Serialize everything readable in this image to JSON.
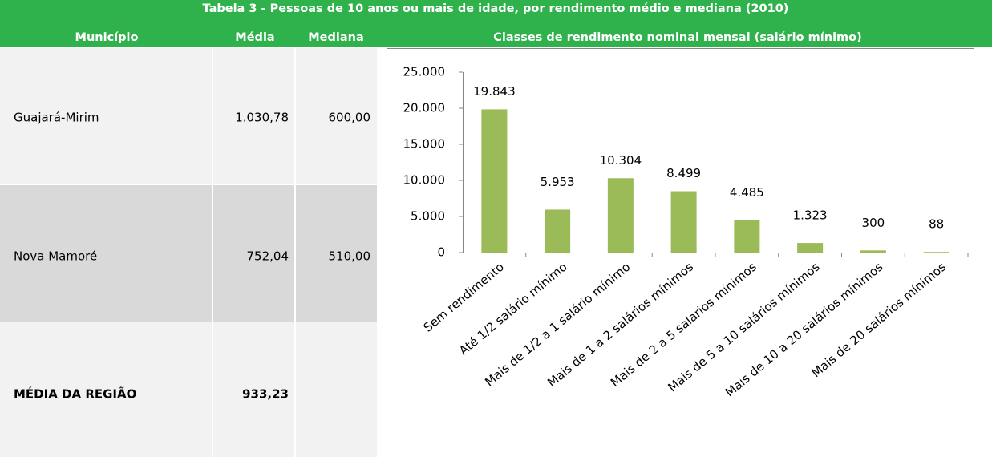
{
  "table": {
    "title": "Tabela 3 - Pessoas de 10 anos ou mais de idade, por rendimento médio e mediana (2010)",
    "columns": [
      "Município",
      "Média",
      "Mediana",
      "Classes de rendimento nominal mensal (salário mínimo)"
    ],
    "rows": [
      [
        "Guajará-Mirim",
        "1.030,78",
        "600,00"
      ],
      [
        "Nova Mamoré",
        "752,04",
        "510,00"
      ],
      [
        "MÉDIA DA REGIÃO",
        "933,23"
      ]
    ]
  },
  "chart_data": {
    "type": "bar",
    "categories": [
      "Sem rendimento",
      "Até 1/2 salário mínimo",
      "Mais de 1/2 a 1 salário mínimo",
      "Mais de 1 a 2 salários mínimos",
      "Mais de 2 a 5 salários mínimos",
      "Mais de 5 a 10 salários mínimos",
      "Mais de 10 a 20 salários mínimos",
      "Mais de 20 salários mínimos"
    ],
    "values": [
      19843,
      5953,
      10304,
      8499,
      4485,
      1323,
      300,
      88
    ],
    "value_labels": [
      "19.843",
      "5.953",
      "10.304",
      "8.499",
      "4.485",
      "1.323",
      "300",
      "88"
    ],
    "color": "#9bbb59",
    "ylim": [
      0,
      25000
    ],
    "yticks": [
      0,
      {
        "value": 5000,
        "label": "5.000"
      },
      {
        "value": 10000,
        "label": "10.000"
      },
      {
        "value": 15000,
        "label": "15.000"
      },
      {
        "value": 20000,
        "label": "20.000"
      },
      {
        "value": 25000,
        "label": "25.000"
      }
    ]
  }
}
